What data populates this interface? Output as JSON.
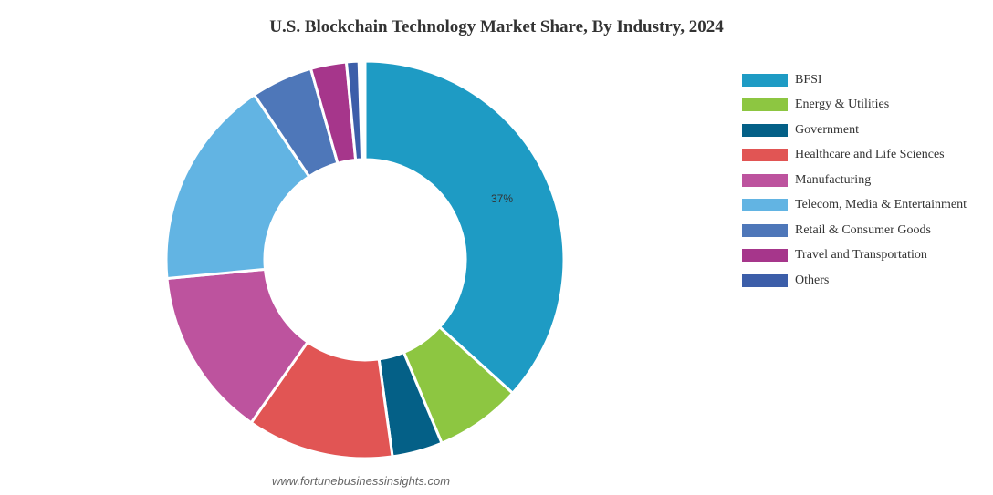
{
  "chart_data": {
    "type": "pie",
    "subtype": "donut",
    "title": "U.S. Blockchain Technology Market Share, By Industry, 2024",
    "categories": [
      "BFSI",
      "Energy & Utilities",
      "Government",
      "Healthcare and Life Sciences",
      "Manufacturing",
      "Telecom, Media & Entertainment",
      "Retail & Consumer Goods",
      "Travel and Transportation",
      "Others"
    ],
    "values": [
      36.7,
      7.0,
      4.1,
      11.9,
      13.8,
      17.1,
      5.0,
      2.9,
      1.0
    ],
    "colors": [
      "#1e9bc4",
      "#8dc641",
      "#046087",
      "#e15554",
      "#bd539e",
      "#62b4e3",
      "#4e77b9",
      "#a6368b",
      "#3c5ea9"
    ],
    "data_labels": [
      {
        "category": "BFSI",
        "text": "37%"
      }
    ],
    "legend_position": "right",
    "source": "www.fortunebusinessinsights.com"
  },
  "title": "U.S. Blockchain Technology Market Share, By Industry, 2024",
  "legend": [
    {
      "label": "BFSI",
      "color": "#1e9bc4"
    },
    {
      "label": "Energy & Utilities",
      "color": "#8dc641"
    },
    {
      "label": "Government",
      "color": "#046087"
    },
    {
      "label": "Healthcare and Life Sciences",
      "color": "#e15554"
    },
    {
      "label": "Manufacturing",
      "color": "#bd539e"
    },
    {
      "label": "Telecom, Media & Entertainment",
      "color": "#62b4e3"
    },
    {
      "label": "Retail & Consumer Goods",
      "color": "#4e77b9"
    },
    {
      "label": "Travel and Transportation",
      "color": "#a6368b"
    },
    {
      "label": "Others",
      "color": "#3c5ea9"
    }
  ],
  "bfsi_label": "37%",
  "source": "www.fortunebusinessinsights.com"
}
